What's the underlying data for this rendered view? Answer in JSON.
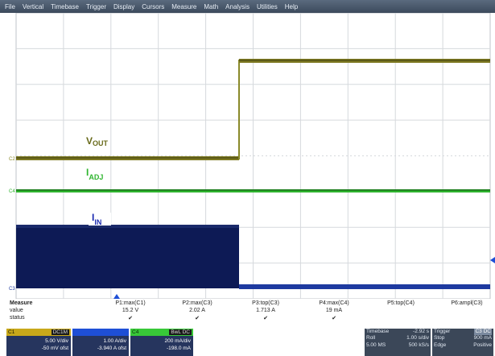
{
  "menu": [
    "File",
    "Vertical",
    "Timebase",
    "Trigger",
    "Display",
    "Cursors",
    "Measure",
    "Math",
    "Analysis",
    "Utilities",
    "Help"
  ],
  "traces": {
    "vout": {
      "main": "V",
      "sub": "OUT",
      "marker": "C2",
      "color": "#686a1a"
    },
    "iadj": {
      "main": "I",
      "sub": "ADJ",
      "marker": "C4",
      "color": "#2fb52f"
    },
    "iin": {
      "main": "I",
      "sub": "IN",
      "marker": "C3",
      "color": "#0d1a55"
    }
  },
  "measure": {
    "header_label": "Measure",
    "value_label": "value",
    "status_label": "status",
    "params": [
      {
        "name": "P1:max(C1)",
        "value": "15.2 V",
        "status": "✔"
      },
      {
        "name": "P2:max(C3)",
        "value": "2.02 A",
        "status": "✔"
      },
      {
        "name": "P3:top(C3)",
        "value": "1.713 A",
        "status": "✔"
      },
      {
        "name": "P4:max(C4)",
        "value": "19 mA",
        "status": "✔"
      },
      {
        "name": "P5:top(C4)",
        "value": "",
        "status": ""
      },
      {
        "name": "P6:ampl(C3)",
        "value": "",
        "status": ""
      }
    ]
  },
  "channels": {
    "c1": {
      "tag": "C1",
      "coupling": "DC1M",
      "vdiv": "5.00 V/div",
      "offset": "-50 mV ofst",
      "color": "#c8a81a"
    },
    "c3": {
      "tag": "C3",
      "coupling": "",
      "vdiv": "1.00 A/div",
      "offset": "-3.940 A ofst",
      "color": "#1e4fd6"
    },
    "c4": {
      "tag": "C4",
      "coupling": "BwL DC",
      "vdiv": "200 mA/div",
      "offset": "-198.0 mA",
      "color": "#38c838"
    }
  },
  "timebase": {
    "title": "Timebase",
    "delay": "-2.92 s",
    "mode": "Roll",
    "tdiv": "1.00 s/div",
    "samples": "5.00 MS",
    "rate": "500 kS/s"
  },
  "trigger": {
    "title": "Trigger",
    "tag": "C3 DC",
    "state": "Stop",
    "level": "900 mA",
    "type": "Edge",
    "slope": "Positive"
  }
}
